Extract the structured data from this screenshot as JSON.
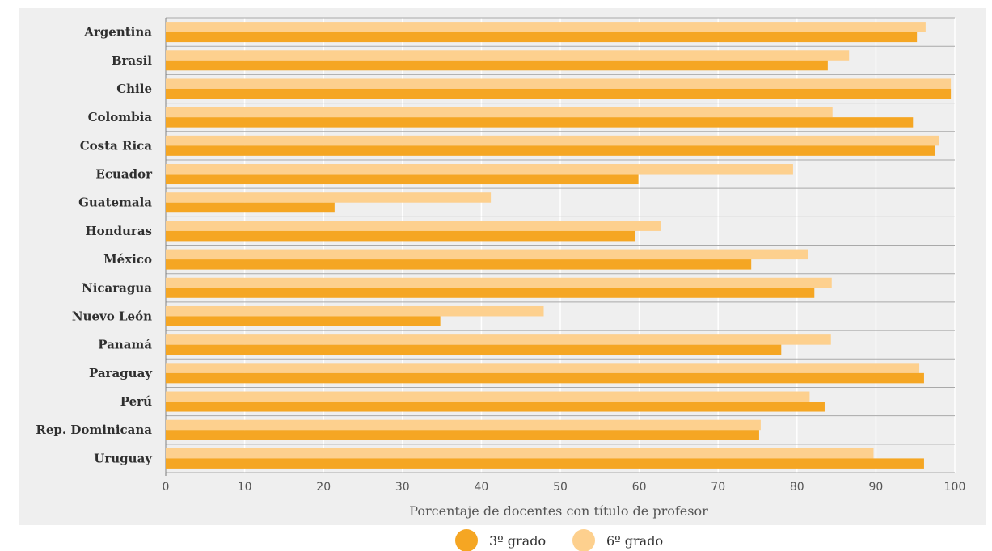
{
  "chart_data": {
    "type": "bar",
    "orientation": "horizontal",
    "categories": [
      "Argentina",
      "Brasil",
      "Chile",
      "Colombia",
      "Costa Rica",
      "Ecuador",
      "Guatemala",
      "Honduras",
      "México",
      "Nicaragua",
      "Nuevo León",
      "Panamá",
      "Paraguay",
      "Perú",
      "Rep. Dominicana",
      "Uruguay"
    ],
    "series": [
      {
        "name": "6º grado",
        "color": "#fdd08e",
        "values": [
          96.3,
          86.6,
          99.5,
          84.5,
          98.0,
          79.5,
          41.2,
          62.8,
          81.4,
          84.4,
          47.9,
          84.3,
          95.5,
          81.6,
          75.4,
          89.7
        ]
      },
      {
        "name": "3º grado",
        "color": "#f5a623",
        "values": [
          95.2,
          83.9,
          99.5,
          94.7,
          97.5,
          59.9,
          21.4,
          59.5,
          74.2,
          82.2,
          34.8,
          78.0,
          96.1,
          83.5,
          75.2,
          96.1
        ]
      }
    ],
    "xlabel": "Porcentaje de docentes con título de profesor",
    "ylabel": "",
    "xlim": [
      0,
      100
    ],
    "xticks": [
      "0",
      "10",
      "20",
      "30",
      "40",
      "50",
      "60",
      "70",
      "80",
      "90",
      "100"
    ],
    "grid": true,
    "legend_position": "bottom",
    "legend": [
      {
        "label": "3º grado",
        "color": "#f5a623"
      },
      {
        "label": "6º grado",
        "color": "#fdd08e"
      }
    ]
  }
}
